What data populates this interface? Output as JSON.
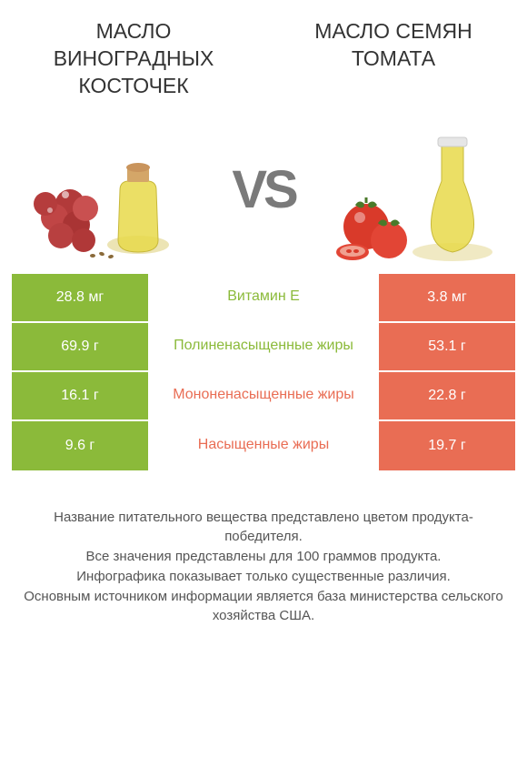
{
  "header": {
    "left_title": "МАСЛО ВИНОГРАДНЫХ КОСТОЧЕК",
    "right_title": "МАСЛО СЕМЯН ТОМАТА"
  },
  "vs_label": "VS",
  "colors": {
    "left": "#8bba3a",
    "right": "#e96d54",
    "left_text": "#8bba3a",
    "right_text": "#e96d54",
    "footer_text": "#555555",
    "title_text": "#333333"
  },
  "rows": [
    {
      "left": "28.8 мг",
      "label": "Витамин E",
      "right": "3.8 мг",
      "winner": "left"
    },
    {
      "left": "69.9 г",
      "label": "Полиненасыщенные жиры",
      "right": "53.1 г",
      "winner": "left"
    },
    {
      "left": "16.1 г",
      "label": "Мононенасыщенные жиры",
      "right": "22.8 г",
      "winner": "right"
    },
    {
      "left": "9.6 г",
      "label": "Насыщенные жиры",
      "right": "19.7 г",
      "winner": "right"
    }
  ],
  "footer": {
    "line1": "Название питательного вещества представлено цветом продукта-победителя.",
    "line2": "Все значения представлены для 100 граммов продукта.",
    "line3": "Инфографика показывает только существенные различия.",
    "line4": "Основным источником информации является база министерства сельского хозяйства США."
  }
}
